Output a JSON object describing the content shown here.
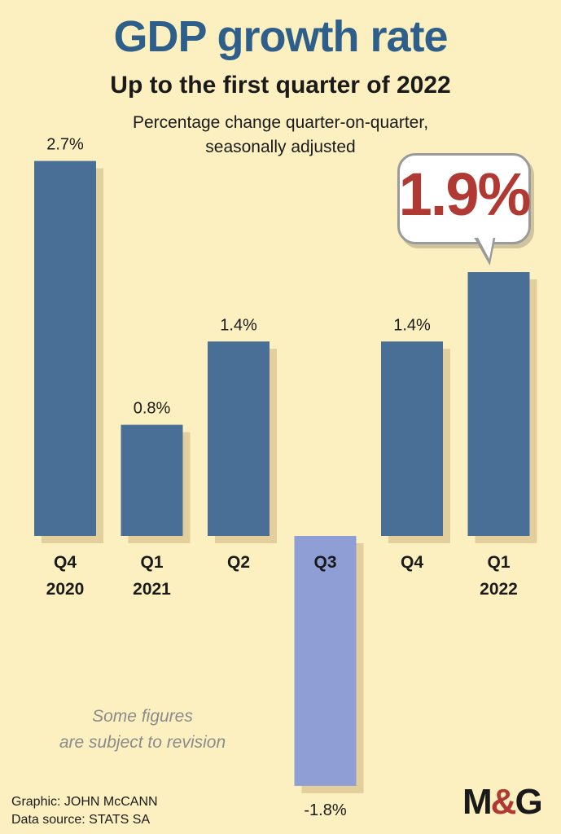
{
  "header": {
    "title": "GDP growth rate",
    "subtitle": "Up to the first quarter of 2022",
    "note_line1": "Percentage change quarter-on-quarter,",
    "note_line2": "seasonally adjusted"
  },
  "callout": {
    "text": "1.9%"
  },
  "footnote": {
    "line1": "Some figures",
    "line2": "are subject to revision"
  },
  "credits": {
    "graphic": "Graphic: JOHN McCANN",
    "source": "Data source: STATS SA"
  },
  "logo": {
    "m": "M",
    "amp": "&",
    "g": "G"
  },
  "colors": {
    "background": "#fdf0c0",
    "bar": "#4a6f96",
    "negative_bar": "#8f9ed4",
    "shadow": "#e2cf9c",
    "title": "#2e5f8a",
    "highlight": "#b03a33"
  },
  "chart_data": {
    "type": "bar",
    "title": "GDP growth rate",
    "subtitle": "Up to the first quarter of 2022",
    "categories": [
      "Q4 2020",
      "Q1 2021",
      "Q2 2021",
      "Q3 2021",
      "Q4 2021",
      "Q1 2022"
    ],
    "category_labels": [
      {
        "quarter": "Q4",
        "year": "2020"
      },
      {
        "quarter": "Q1",
        "year": "2021"
      },
      {
        "quarter": "Q2",
        "year": ""
      },
      {
        "quarter": "Q3",
        "year": ""
      },
      {
        "quarter": "Q4",
        "year": ""
      },
      {
        "quarter": "Q1",
        "year": "2022"
      }
    ],
    "values": [
      2.7,
      0.8,
      1.4,
      -1.8,
      1.4,
      1.9
    ],
    "value_labels": [
      "2.7%",
      "0.8%",
      "1.4%",
      "-1.8%",
      "1.4%",
      ""
    ],
    "ylim": [
      -1.8,
      2.7
    ],
    "grid": false,
    "legend": "none"
  }
}
